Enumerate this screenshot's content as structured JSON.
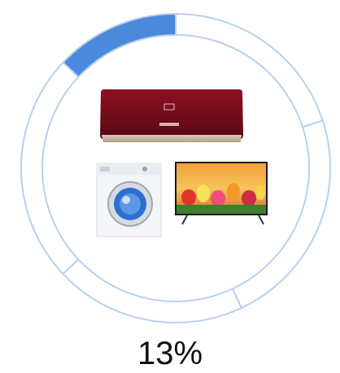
{
  "chart_data": {
    "type": "pie",
    "label": "13%",
    "value_percent": 13,
    "segments": [
      {
        "name": "",
        "value": 13,
        "color": "#4a89dc",
        "filled": true
      },
      {
        "name": "",
        "value": 24,
        "color": "#ffffff",
        "filled": false
      },
      {
        "name": "",
        "value": 20,
        "color": "#ffffff",
        "filled": false
      },
      {
        "name": "",
        "value": 23,
        "color": "#ffffff",
        "filled": false
      },
      {
        "name": "",
        "value": 20,
        "color": "#ffffff",
        "filled": false
      }
    ],
    "ring_outline_color": "#b9cfec"
  },
  "images": {
    "air_conditioner": "air-conditioner-image",
    "washing_machine": "washing-machine-image",
    "television": "television-image"
  }
}
